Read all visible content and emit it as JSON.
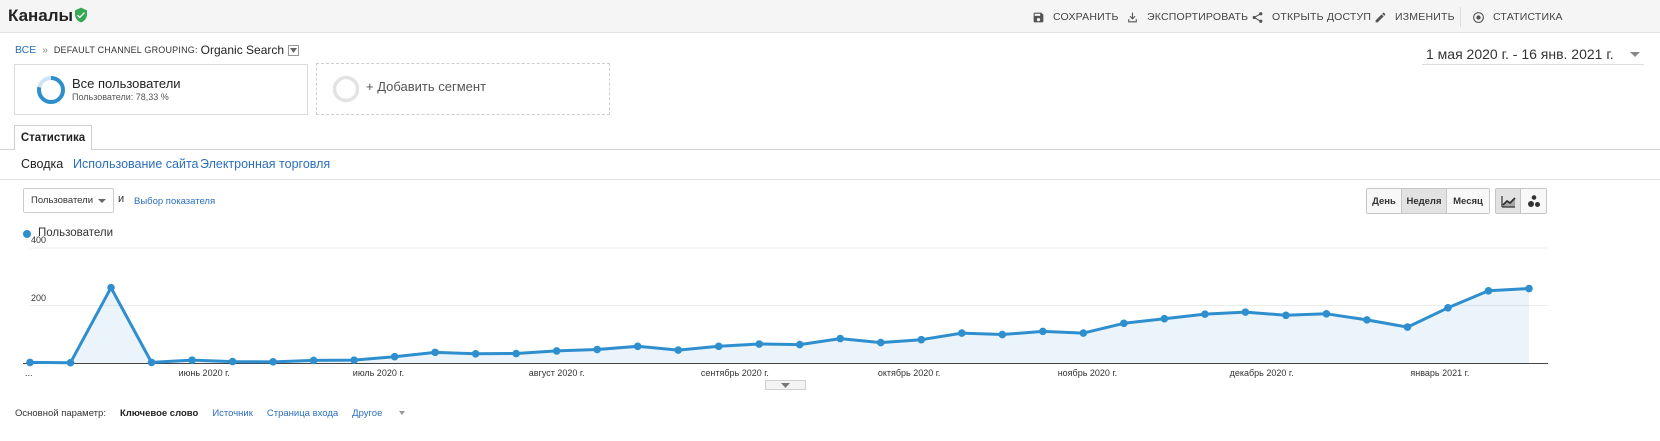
{
  "header": {
    "title": "Каналы",
    "actions": [
      {
        "label": "СОХРАНИТЬ",
        "icon": "save-icon"
      },
      {
        "label": "ЭКСПОРТИРОВАТЬ",
        "icon": "download-icon"
      },
      {
        "label": "ОТКРЫТЬ ДОСТУП",
        "icon": "share-icon"
      },
      {
        "label": "ИЗМЕНИТЬ",
        "icon": "pencil-icon"
      },
      {
        "label": "СТАТИСТИКА",
        "icon": "insights-icon"
      }
    ]
  },
  "breadcrumb": {
    "all": "ВСЕ",
    "separator": "»",
    "dimension": "DEFAULT CHANNEL GROUPING:",
    "value": "Organic Search"
  },
  "date_range": "1 мая 2020 г. - 16 янв. 2021 г.",
  "segments": {
    "active": {
      "title": "Все пользователи",
      "subtitle": "Пользователи: 78,33 %"
    },
    "add": "+ Добавить сегмент"
  },
  "tab": "Статистика",
  "subtabs": [
    "Сводка",
    "Использование сайта",
    "Электронная торговля"
  ],
  "metric": {
    "selected": "Пользователи",
    "and": "и",
    "pick": "Выбор показателя"
  },
  "periods": {
    "items": [
      "День",
      "Неделя",
      "Месяц"
    ],
    "active": "Неделя"
  },
  "colors": {
    "series": "#2f8fce",
    "accent": "#2a6fbd",
    "verified": "#34a853"
  },
  "chart_data": {
    "type": "line",
    "series": [
      {
        "name": "Пользователи",
        "values": [
          2,
          1,
          262,
          2,
          10,
          5,
          4,
          9,
          10,
          22,
          37,
          32,
          33,
          42,
          47,
          58,
          45,
          58,
          66,
          64,
          85,
          71,
          81,
          104,
          99,
          110,
          104,
          138,
          154,
          170,
          177,
          166,
          171,
          150,
          125,
          192,
          251,
          259
        ]
      }
    ],
    "yticks": [
      200,
      400
    ],
    "ylim": [
      0,
      400
    ],
    "xlabels": [
      {
        "label": "...",
        "index": 0
      },
      {
        "label": "июнь 2020 г.",
        "index": 4.3
      },
      {
        "label": "июль 2020 г.",
        "index": 8.6
      },
      {
        "label": "август 2020 г.",
        "index": 13
      },
      {
        "label": "сентябрь 2020 г.",
        "index": 17.4
      },
      {
        "label": "октябрь 2020 г.",
        "index": 21.7
      },
      {
        "label": "ноябрь 2020 г.",
        "index": 26.1
      },
      {
        "label": "декабрь 2020 г.",
        "index": 30.4
      },
      {
        "label": "январь 2021 г.",
        "index": 34.8
      }
    ]
  },
  "bottom": {
    "label": "Основной параметр:",
    "active": "Ключевое слово",
    "links": [
      "Источник",
      "Страница входа"
    ],
    "other": "Другое"
  }
}
